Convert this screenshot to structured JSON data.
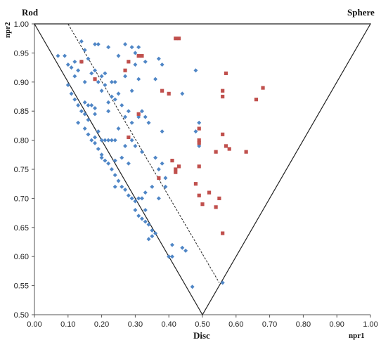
{
  "chart_data": {
    "type": "scatter",
    "title": "",
    "xlabel": "npr1",
    "ylabel": "npr2",
    "xlim": [
      0,
      1
    ],
    "ylim": [
      0.5,
      1
    ],
    "x_ticks": [
      "0.00",
      "0.10",
      "0.20",
      "0.30",
      "0.40",
      "0.50",
      "0.60",
      "0.70",
      "0.80",
      "0.90",
      "1.00"
    ],
    "y_ticks": [
      "0.50",
      "0.55",
      "0.60",
      "0.65",
      "0.70",
      "0.75",
      "0.80",
      "0.85",
      "0.90",
      "0.95",
      "1.00"
    ],
    "corner_labels": {
      "top_left": "Rod",
      "top_right": "Sphere",
      "bottom": "Disc"
    },
    "triangle": [
      [
        0,
        1
      ],
      [
        1,
        1
      ],
      [
        0.5,
        0.5
      ]
    ],
    "divider_line": [
      [
        0.1,
        1
      ],
      [
        0.55,
        0.555
      ]
    ],
    "grid": false,
    "legend": "none",
    "colors": {
      "series_blue": "#4f86c6",
      "series_red": "#c0504d"
    },
    "series": [
      {
        "color": "#4f86c6",
        "marker": "diamond",
        "points": [
          [
            0.07,
            0.945
          ],
          [
            0.09,
            0.945
          ],
          [
            0.1,
            0.93
          ],
          [
            0.11,
            0.925
          ],
          [
            0.12,
            0.935
          ],
          [
            0.13,
            0.92
          ],
          [
            0.14,
            0.97
          ],
          [
            0.15,
            0.955
          ],
          [
            0.16,
            0.94
          ],
          [
            0.18,
            0.965
          ],
          [
            0.19,
            0.965
          ],
          [
            0.14,
            0.935
          ],
          [
            0.12,
            0.91
          ],
          [
            0.15,
            0.9
          ],
          [
            0.17,
            0.915
          ],
          [
            0.18,
            0.92
          ],
          [
            0.19,
            0.9
          ],
          [
            0.2,
            0.91
          ],
          [
            0.21,
            0.915
          ],
          [
            0.22,
            0.96
          ],
          [
            0.27,
            0.965
          ],
          [
            0.29,
            0.96
          ],
          [
            0.31,
            0.96
          ],
          [
            0.25,
            0.945
          ],
          [
            0.3,
            0.95
          ],
          [
            0.33,
            0.935
          ],
          [
            0.3,
            0.93
          ],
          [
            0.23,
            0.9
          ],
          [
            0.24,
            0.9
          ],
          [
            0.21,
            0.895
          ],
          [
            0.2,
            0.885
          ],
          [
            0.25,
            0.88
          ],
          [
            0.23,
            0.875
          ],
          [
            0.29,
            0.885
          ],
          [
            0.31,
            0.905
          ],
          [
            0.27,
            0.91
          ],
          [
            0.37,
            0.94
          ],
          [
            0.38,
            0.93
          ],
          [
            0.36,
            0.905
          ],
          [
            0.1,
            0.895
          ],
          [
            0.11,
            0.88
          ],
          [
            0.12,
            0.87
          ],
          [
            0.13,
            0.86
          ],
          [
            0.14,
            0.85
          ],
          [
            0.15,
            0.865
          ],
          [
            0.16,
            0.86
          ],
          [
            0.17,
            0.86
          ],
          [
            0.18,
            0.855
          ],
          [
            0.15,
            0.845
          ],
          [
            0.16,
            0.835
          ],
          [
            0.18,
            0.845
          ],
          [
            0.22,
            0.865
          ],
          [
            0.24,
            0.87
          ],
          [
            0.26,
            0.86
          ],
          [
            0.28,
            0.85
          ],
          [
            0.22,
            0.85
          ],
          [
            0.13,
            0.83
          ],
          [
            0.15,
            0.82
          ],
          [
            0.16,
            0.81
          ],
          [
            0.17,
            0.8
          ],
          [
            0.18,
            0.795
          ],
          [
            0.19,
            0.785
          ],
          [
            0.2,
            0.775
          ],
          [
            0.18,
            0.805
          ],
          [
            0.19,
            0.815
          ],
          [
            0.2,
            0.8
          ],
          [
            0.21,
            0.8
          ],
          [
            0.22,
            0.8
          ],
          [
            0.23,
            0.8
          ],
          [
            0.24,
            0.8
          ],
          [
            0.2,
            0.77
          ],
          [
            0.21,
            0.765
          ],
          [
            0.22,
            0.76
          ],
          [
            0.24,
            0.765
          ],
          [
            0.25,
            0.82
          ],
          [
            0.27,
            0.84
          ],
          [
            0.29,
            0.83
          ],
          [
            0.31,
            0.84
          ],
          [
            0.32,
            0.85
          ],
          [
            0.33,
            0.84
          ],
          [
            0.34,
            0.83
          ],
          [
            0.38,
            0.815
          ],
          [
            0.27,
            0.79
          ],
          [
            0.29,
            0.8
          ],
          [
            0.3,
            0.79
          ],
          [
            0.32,
            0.78
          ],
          [
            0.28,
            0.76
          ],
          [
            0.26,
            0.77
          ],
          [
            0.23,
            0.75
          ],
          [
            0.24,
            0.74
          ],
          [
            0.25,
            0.73
          ],
          [
            0.26,
            0.72
          ],
          [
            0.27,
            0.715
          ],
          [
            0.28,
            0.705
          ],
          [
            0.29,
            0.7
          ],
          [
            0.3,
            0.695
          ],
          [
            0.31,
            0.7
          ],
          [
            0.3,
            0.68
          ],
          [
            0.33,
            0.68
          ],
          [
            0.31,
            0.67
          ],
          [
            0.32,
            0.665
          ],
          [
            0.33,
            0.66
          ],
          [
            0.34,
            0.655
          ],
          [
            0.35,
            0.645
          ],
          [
            0.35,
            0.635
          ],
          [
            0.36,
            0.77
          ],
          [
            0.38,
            0.76
          ],
          [
            0.37,
            0.75
          ],
          [
            0.39,
            0.735
          ],
          [
            0.37,
            0.7
          ],
          [
            0.39,
            0.72
          ],
          [
            0.35,
            0.72
          ],
          [
            0.33,
            0.71
          ],
          [
            0.36,
            0.64
          ],
          [
            0.34,
            0.63
          ],
          [
            0.32,
            0.7
          ],
          [
            0.24,
            0.72
          ],
          [
            0.41,
            0.62
          ],
          [
            0.41,
            0.6
          ],
          [
            0.4,
            0.6
          ],
          [
            0.44,
            0.615
          ],
          [
            0.45,
            0.61
          ],
          [
            0.44,
            0.88
          ],
          [
            0.48,
            0.92
          ],
          [
            0.49,
            0.83
          ],
          [
            0.48,
            0.815
          ],
          [
            0.47,
            0.548
          ],
          [
            0.56,
            0.555
          ],
          [
            0.49,
            0.79
          ]
        ]
      },
      {
        "color": "#c0504d",
        "marker": "square",
        "points": [
          [
            0.14,
            0.935
          ],
          [
            0.18,
            0.905
          ],
          [
            0.27,
            0.92
          ],
          [
            0.28,
            0.935
          ],
          [
            0.31,
            0.945
          ],
          [
            0.32,
            0.945
          ],
          [
            0.42,
            0.975
          ],
          [
            0.43,
            0.975
          ],
          [
            0.57,
            0.915
          ],
          [
            0.38,
            0.885
          ],
          [
            0.4,
            0.88
          ],
          [
            0.56,
            0.885
          ],
          [
            0.56,
            0.875
          ],
          [
            0.68,
            0.89
          ],
          [
            0.66,
            0.87
          ],
          [
            0.28,
            0.805
          ],
          [
            0.31,
            0.845
          ],
          [
            0.49,
            0.82
          ],
          [
            0.49,
            0.8
          ],
          [
            0.49,
            0.795
          ],
          [
            0.56,
            0.81
          ],
          [
            0.57,
            0.79
          ],
          [
            0.54,
            0.78
          ],
          [
            0.58,
            0.785
          ],
          [
            0.63,
            0.78
          ],
          [
            0.41,
            0.765
          ],
          [
            0.42,
            0.75
          ],
          [
            0.42,
            0.745
          ],
          [
            0.43,
            0.755
          ],
          [
            0.37,
            0.735
          ],
          [
            0.49,
            0.755
          ],
          [
            0.48,
            0.725
          ],
          [
            0.49,
            0.705
          ],
          [
            0.52,
            0.71
          ],
          [
            0.55,
            0.7
          ],
          [
            0.5,
            0.69
          ],
          [
            0.54,
            0.685
          ],
          [
            0.56,
            0.64
          ]
        ]
      }
    ]
  }
}
